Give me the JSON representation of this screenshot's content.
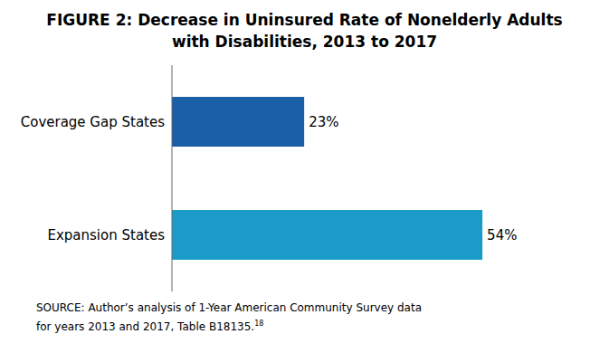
{
  "chart_data": {
    "type": "bar",
    "orientation": "horizontal",
    "title": [
      "FIGURE 2:  Decrease in Uninsured Rate of Nonelderly Adults",
      "with Disabilities, 2013 to 2017"
    ],
    "categories": [
      "Coverage Gap States",
      "Expansion States"
    ],
    "values": [
      23,
      54
    ],
    "value_labels": [
      "23%",
      "54%"
    ],
    "data_labels": true,
    "colors": [
      "#1a5fa8",
      "#1a9bca"
    ],
    "xlim": [
      0,
      65
    ],
    "tick_labels": "y",
    "grid": false,
    "annotations": [
      "SOURCE: Author’s analysis of 1-Year American Community Survey data",
      "for years 2013 and 2017, Table B18135.",
      "18"
    ]
  }
}
